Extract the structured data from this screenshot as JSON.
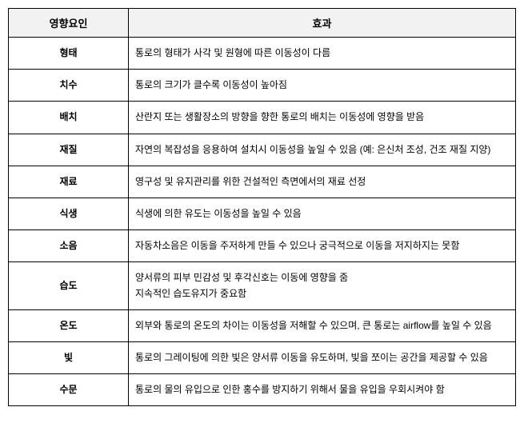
{
  "table": {
    "headers": {
      "factor": "영향요인",
      "effect": "효과"
    },
    "rows": [
      {
        "factor": "형태",
        "effect": "통로의 형태가 사각 및 원형에 따른 이동성이 다름"
      },
      {
        "factor": "치수",
        "effect": "통로의 크기가 클수록 이동성이 높아짐"
      },
      {
        "factor": "배치",
        "effect": "산란지 또는 생활장소의 방향을 향한 통로의 배치는 이동성에 영향을 받음"
      },
      {
        "factor": "재질",
        "effect": "자연의 복잡성을 응용하여 설치시 이동성을 높일 수 있음 (예: 은신처 조성, 건조 재질 지양)"
      },
      {
        "factor": "재료",
        "effect": "영구성 및 유지관리를 위한 건설적인 측면에서의 재료 선정"
      },
      {
        "factor": "식생",
        "effect": "식생에 의한 유도는 이동성을 높일 수 있음"
      },
      {
        "factor": "소음",
        "effect": "자동차소음은 이동을 주저하게 만들 수 있으나 궁극적으로 이동을 저지하지는 못함"
      },
      {
        "factor": "습도",
        "effect": "양서류의 피부 민감성 및 후각신호는 이동에 영향을 줌\n지속적인 습도유지가 중요함"
      },
      {
        "factor": "온도",
        "effect": "외부와 통로의 온도의 차이는 이동성을 저해할 수 있으며, 큰 통로는 airflow를 높일 수 있음"
      },
      {
        "factor": "빛",
        "effect": "통로의 그레이팅에 의한 빛은 양서류 이동을 유도하며, 빛을 쪼이는 공간을 제공할 수 있음"
      },
      {
        "factor": "수문",
        "effect": "통로의 물의 유입으로 인한 홍수를 방지하기 위해서 물을 유입을 우회시켜야 함"
      }
    ],
    "styling": {
      "border_color": "#000000",
      "header_bg": "#f2f2f2",
      "font_size_header": 13,
      "font_size_body": 12,
      "factor_col_width": 150,
      "cell_padding": 10
    }
  }
}
